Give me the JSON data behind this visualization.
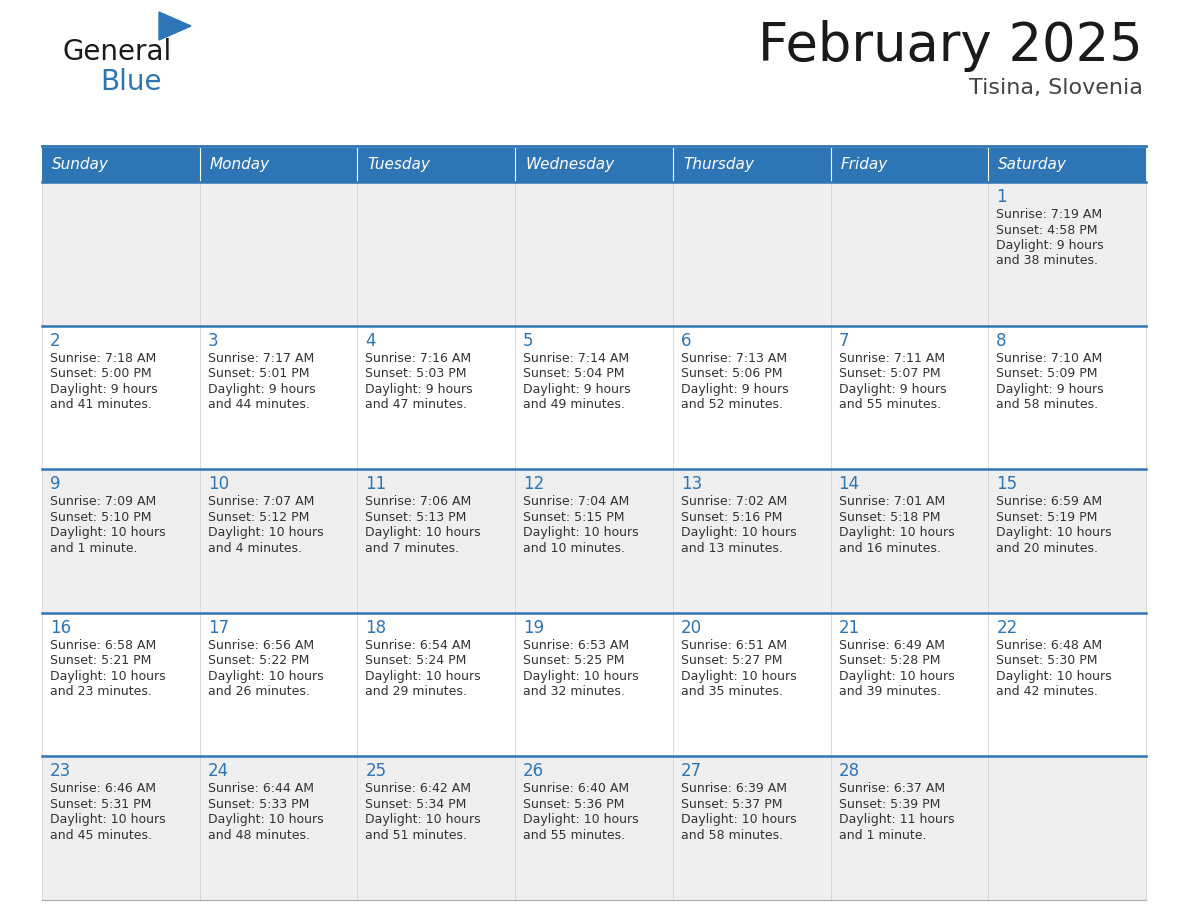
{
  "title": "February 2025",
  "subtitle": "Tisina, Slovenia",
  "header_bg": "#2E75B6",
  "header_text_color": "#FFFFFF",
  "cell_bg_even": "#EFEFEF",
  "cell_bg_odd": "#FFFFFF",
  "day_number_color": "#2E75B6",
  "text_color": "#333333",
  "separator_color": "#2E75B6",
  "days_of_week": [
    "Sunday",
    "Monday",
    "Tuesday",
    "Wednesday",
    "Thursday",
    "Friday",
    "Saturday"
  ],
  "calendar": [
    [
      null,
      null,
      null,
      null,
      null,
      null,
      {
        "day": "1",
        "sunrise": "7:19 AM",
        "sunset": "4:58 PM",
        "daylight": "9 hours",
        "daylight2": "and 38 minutes."
      }
    ],
    [
      {
        "day": "2",
        "sunrise": "7:18 AM",
        "sunset": "5:00 PM",
        "daylight": "9 hours",
        "daylight2": "and 41 minutes."
      },
      {
        "day": "3",
        "sunrise": "7:17 AM",
        "sunset": "5:01 PM",
        "daylight": "9 hours",
        "daylight2": "and 44 minutes."
      },
      {
        "day": "4",
        "sunrise": "7:16 AM",
        "sunset": "5:03 PM",
        "daylight": "9 hours",
        "daylight2": "and 47 minutes."
      },
      {
        "day": "5",
        "sunrise": "7:14 AM",
        "sunset": "5:04 PM",
        "daylight": "9 hours",
        "daylight2": "and 49 minutes."
      },
      {
        "day": "6",
        "sunrise": "7:13 AM",
        "sunset": "5:06 PM",
        "daylight": "9 hours",
        "daylight2": "and 52 minutes."
      },
      {
        "day": "7",
        "sunrise": "7:11 AM",
        "sunset": "5:07 PM",
        "daylight": "9 hours",
        "daylight2": "and 55 minutes."
      },
      {
        "day": "8",
        "sunrise": "7:10 AM",
        "sunset": "5:09 PM",
        "daylight": "9 hours",
        "daylight2": "and 58 minutes."
      }
    ],
    [
      {
        "day": "9",
        "sunrise": "7:09 AM",
        "sunset": "5:10 PM",
        "daylight": "10 hours",
        "daylight2": "and 1 minute."
      },
      {
        "day": "10",
        "sunrise": "7:07 AM",
        "sunset": "5:12 PM",
        "daylight": "10 hours",
        "daylight2": "and 4 minutes."
      },
      {
        "day": "11",
        "sunrise": "7:06 AM",
        "sunset": "5:13 PM",
        "daylight": "10 hours",
        "daylight2": "and 7 minutes."
      },
      {
        "day": "12",
        "sunrise": "7:04 AM",
        "sunset": "5:15 PM",
        "daylight": "10 hours",
        "daylight2": "and 10 minutes."
      },
      {
        "day": "13",
        "sunrise": "7:02 AM",
        "sunset": "5:16 PM",
        "daylight": "10 hours",
        "daylight2": "and 13 minutes."
      },
      {
        "day": "14",
        "sunrise": "7:01 AM",
        "sunset": "5:18 PM",
        "daylight": "10 hours",
        "daylight2": "and 16 minutes."
      },
      {
        "day": "15",
        "sunrise": "6:59 AM",
        "sunset": "5:19 PM",
        "daylight": "10 hours",
        "daylight2": "and 20 minutes."
      }
    ],
    [
      {
        "day": "16",
        "sunrise": "6:58 AM",
        "sunset": "5:21 PM",
        "daylight": "10 hours",
        "daylight2": "and 23 minutes."
      },
      {
        "day": "17",
        "sunrise": "6:56 AM",
        "sunset": "5:22 PM",
        "daylight": "10 hours",
        "daylight2": "and 26 minutes."
      },
      {
        "day": "18",
        "sunrise": "6:54 AM",
        "sunset": "5:24 PM",
        "daylight": "10 hours",
        "daylight2": "and 29 minutes."
      },
      {
        "day": "19",
        "sunrise": "6:53 AM",
        "sunset": "5:25 PM",
        "daylight": "10 hours",
        "daylight2": "and 32 minutes."
      },
      {
        "day": "20",
        "sunrise": "6:51 AM",
        "sunset": "5:27 PM",
        "daylight": "10 hours",
        "daylight2": "and 35 minutes."
      },
      {
        "day": "21",
        "sunrise": "6:49 AM",
        "sunset": "5:28 PM",
        "daylight": "10 hours",
        "daylight2": "and 39 minutes."
      },
      {
        "day": "22",
        "sunrise": "6:48 AM",
        "sunset": "5:30 PM",
        "daylight": "10 hours",
        "daylight2": "and 42 minutes."
      }
    ],
    [
      {
        "day": "23",
        "sunrise": "6:46 AM",
        "sunset": "5:31 PM",
        "daylight": "10 hours",
        "daylight2": "and 45 minutes."
      },
      {
        "day": "24",
        "sunrise": "6:44 AM",
        "sunset": "5:33 PM",
        "daylight": "10 hours",
        "daylight2": "and 48 minutes."
      },
      {
        "day": "25",
        "sunrise": "6:42 AM",
        "sunset": "5:34 PM",
        "daylight": "10 hours",
        "daylight2": "and 51 minutes."
      },
      {
        "day": "26",
        "sunrise": "6:40 AM",
        "sunset": "5:36 PM",
        "daylight": "10 hours",
        "daylight2": "and 55 minutes."
      },
      {
        "day": "27",
        "sunrise": "6:39 AM",
        "sunset": "5:37 PM",
        "daylight": "10 hours",
        "daylight2": "and 58 minutes."
      },
      {
        "day": "28",
        "sunrise": "6:37 AM",
        "sunset": "5:39 PM",
        "daylight": "11 hours",
        "daylight2": "and 1 minute."
      },
      null
    ]
  ],
  "logo_general_color": "#1a1a1a",
  "logo_blue_color": "#2E75B6",
  "logo_triangle_color": "#2E75B6"
}
